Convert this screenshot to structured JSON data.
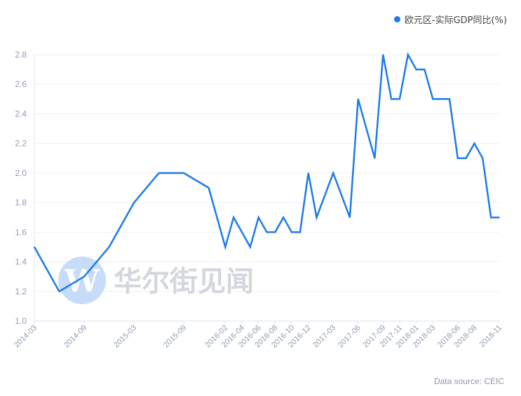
{
  "legend": {
    "label": "欧元区-实际GDP同比(%)"
  },
  "source": "Data source: CEIC",
  "watermark": {
    "letter": "W",
    "text": "华尔街见闻"
  },
  "colors": {
    "series": "#1e7be8",
    "grid": "#eef1f6",
    "tick_text": "#8f9bb3",
    "watermark_circle": "#c7dcf9"
  },
  "chart_data": {
    "type": "line",
    "title": "",
    "xlabel": "",
    "ylabel": "",
    "ylim": [
      1.0,
      2.8
    ],
    "yticks": [
      1.0,
      1.2,
      1.4,
      1.6,
      1.8,
      2.0,
      2.2,
      2.4,
      2.6,
      2.8
    ],
    "grid": true,
    "legend_position": "top-right",
    "xtick_labels": [
      "2014-03",
      "2014-09",
      "2015-03",
      "2015-09",
      "2016-02",
      "2016-04",
      "2016-06",
      "2016-08",
      "2016-10",
      "2016-12",
      "2017-03",
      "2017-06",
      "2017-09",
      "2017-11",
      "2018-01",
      "2018-03",
      "2018-06",
      "2018-08",
      "2018-11"
    ],
    "series": [
      {
        "name": "欧元区-实际GDP同比(%)",
        "x": [
          "2014-03",
          "2014-06",
          "2014-09",
          "2014-12",
          "2015-03",
          "2015-06",
          "2015-09",
          "2015-12",
          "2016-02",
          "2016-03",
          "2016-04",
          "2016-05",
          "2016-06",
          "2016-07",
          "2016-08",
          "2016-09",
          "2016-10",
          "2016-11",
          "2016-12",
          "2017-01",
          "2017-03",
          "2017-05",
          "2017-06",
          "2017-08",
          "2017-09",
          "2017-10",
          "2017-11",
          "2017-12",
          "2018-01",
          "2018-02",
          "2018-03",
          "2018-05",
          "2018-06",
          "2018-07",
          "2018-08",
          "2018-09",
          "2018-10",
          "2018-11"
        ],
        "values": [
          1.5,
          1.2,
          1.3,
          1.5,
          1.8,
          2.0,
          2.0,
          1.9,
          1.5,
          1.7,
          1.6,
          1.5,
          1.7,
          1.6,
          1.6,
          1.7,
          1.6,
          1.6,
          2.0,
          1.7,
          2.0,
          1.7,
          2.5,
          2.1,
          2.8,
          2.5,
          2.5,
          2.8,
          2.7,
          2.7,
          2.5,
          2.5,
          2.1,
          2.1,
          2.2,
          2.1,
          1.7,
          1.7
        ]
      }
    ]
  }
}
